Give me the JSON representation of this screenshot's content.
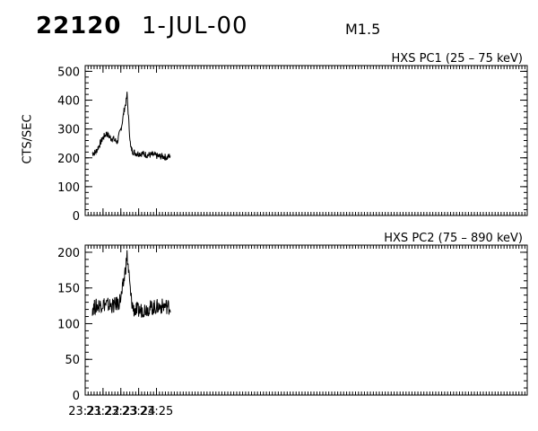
{
  "header": {
    "event_id": "22120",
    "date": "1-JUL-00",
    "flare_class": "M1.5"
  },
  "chart_data": [
    {
      "type": "line",
      "title": "HXS PC1 (25 – 75 keV)",
      "ylabel": "CTS/SEC",
      "xlabel": "",
      "ylim": [
        0,
        520
      ],
      "yticks": [
        0,
        100,
        200,
        300,
        400,
        500
      ],
      "xlim_min": [
        1281,
        1305.8
      ],
      "xticks_min": [
        1281,
        1282,
        1283,
        1284,
        1285
      ],
      "xtick_labels": [
        "23:21",
        "23:22",
        "23:23",
        "23:24",
        "23:25"
      ],
      "grid": false,
      "series": [
        {
          "x_min": [
            1281.4,
            1281.6,
            1281.8,
            1282.0,
            1282.2,
            1282.4,
            1282.6,
            1282.8,
            1283.0,
            1283.1,
            1283.2,
            1283.3,
            1283.35,
            1283.45,
            1283.55,
            1283.7,
            1283.9,
            1284.2,
            1284.5,
            1284.8,
            1285.1,
            1285.4,
            1285.6,
            1285.8
          ],
          "values": [
            215,
            220,
            245,
            270,
            285,
            270,
            265,
            255,
            300,
            330,
            370,
            395,
            420,
            320,
            235,
            220,
            215,
            215,
            210,
            210,
            205,
            205,
            200,
            210
          ]
        }
      ]
    },
    {
      "type": "line",
      "title": "HXS PC2 (75 – 890 keV)",
      "xlabel": "",
      "ylabel": "",
      "ylim": [
        0,
        210
      ],
      "yticks": [
        0,
        50,
        100,
        150,
        200
      ],
      "xlim_min": [
        1281,
        1305.8
      ],
      "xticks_min": [
        1281,
        1282,
        1283,
        1284,
        1285
      ],
      "xtick_labels": [
        "23:21",
        "23:22",
        "23:23",
        "23:24",
        "23:25"
      ],
      "grid": false,
      "series": [
        {
          "x_min": [
            1281.4,
            1281.7,
            1282.0,
            1282.3,
            1282.6,
            1282.9,
            1283.05,
            1283.2,
            1283.3,
            1283.35,
            1283.45,
            1283.55,
            1283.7,
            1284.0,
            1284.3,
            1284.6,
            1284.9,
            1285.2,
            1285.5,
            1285.8
          ],
          "values": [
            122,
            125,
            128,
            126,
            125,
            130,
            140,
            165,
            185,
            195,
            170,
            140,
            120,
            118,
            120,
            122,
            123,
            124,
            125,
            123
          ]
        }
      ]
    }
  ]
}
